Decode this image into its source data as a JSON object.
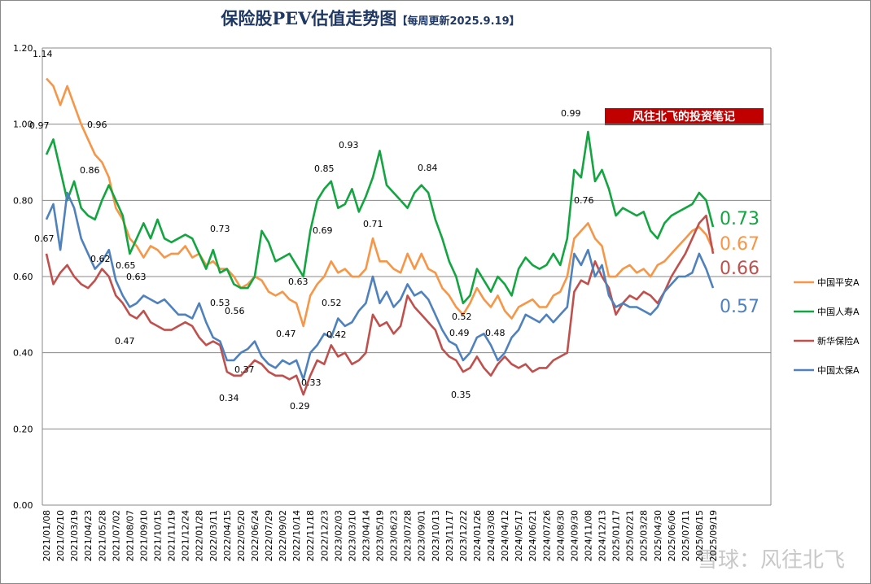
{
  "chart_data": {
    "type": "line",
    "title": "保险股PEV估值走势图",
    "subtitle": "【每周更新2025.9.19】",
    "badge": "风往北飞的投资笔记",
    "watermark": "雪球：风往北飞",
    "ylim": [
      0,
      1.2
    ],
    "yticks": [
      {
        "value": 0,
        "label": "0.00"
      },
      {
        "value": 0.2,
        "label": "0.20"
      },
      {
        "value": 0.4,
        "label": "0.40"
      },
      {
        "value": 0.6,
        "label": "0.60"
      },
      {
        "value": 0.8,
        "label": "0.80"
      },
      {
        "value": 1.0,
        "label": "1.00"
      },
      {
        "value": 1.2,
        "label": "1.20"
      }
    ],
    "grid": true,
    "legend": "right",
    "categories": [
      "2021/01/08",
      null,
      "2021/02/10",
      null,
      "2021/03/19",
      null,
      "2021/04/23",
      null,
      "2021/05/28",
      null,
      "2021/07/02",
      null,
      "2021/08/07",
      null,
      "2021/09/10",
      null,
      "2021/10/15",
      null,
      "2021/11/19",
      null,
      "2021/12/24",
      null,
      "2022/01/28",
      null,
      "2022/03/11",
      null,
      "2022/04/15",
      null,
      "2022/05/20",
      null,
      "2022/06/24",
      null,
      "2022/07/29",
      null,
      "2022/09/02",
      null,
      "2022/10/14",
      null,
      "2022/11/18",
      null,
      "2022/12/23",
      null,
      "2023/02/03",
      null,
      "2023/03/10",
      null,
      "2023/04/14",
      null,
      "2023/05/19",
      null,
      "2023/06/23",
      null,
      "2023/07/28",
      null,
      "2023/09/01",
      null,
      "2023/10/13",
      null,
      "2023/11/17",
      null,
      "2023/12/22",
      null,
      "2024/01/26",
      null,
      "2024/03/08",
      null,
      "2024/04/12",
      null,
      "2024/05/17",
      null,
      "2024/06/21",
      null,
      "2024/07/26",
      null,
      "2024/08/30",
      null,
      "2024/09/30",
      null,
      "2024/11/08",
      null,
      "2024/12/13",
      null,
      "2025/01/17",
      null,
      "2025/02/21",
      null,
      "2025/03/28",
      null,
      "2025/04/30",
      null,
      "2025/06/06",
      null,
      "2025/07/11",
      null,
      "2025/08/15",
      null,
      "2025/09/19"
    ],
    "series": [
      {
        "name": "中国平安A",
        "color": "#f79646",
        "end_label": "0.67",
        "values": [
          1.12,
          1.1,
          1.05,
          1.1,
          1.05,
          1.0,
          0.96,
          0.92,
          0.9,
          0.86,
          0.78,
          0.75,
          0.7,
          0.68,
          0.65,
          0.68,
          0.67,
          0.65,
          0.66,
          0.66,
          0.68,
          0.65,
          0.66,
          0.63,
          0.64,
          0.62,
          0.62,
          0.6,
          0.57,
          0.58,
          0.6,
          0.59,
          0.56,
          0.55,
          0.56,
          0.54,
          0.53,
          0.47,
          0.55,
          0.58,
          0.6,
          0.64,
          0.61,
          0.62,
          0.6,
          0.6,
          0.62,
          0.7,
          0.64,
          0.64,
          0.62,
          0.61,
          0.66,
          0.62,
          0.66,
          0.62,
          0.61,
          0.57,
          0.55,
          0.52,
          0.5,
          0.53,
          0.57,
          0.54,
          0.52,
          0.55,
          0.51,
          0.49,
          0.52,
          0.53,
          0.54,
          0.52,
          0.52,
          0.55,
          0.56,
          0.6,
          0.7,
          0.72,
          0.74,
          0.7,
          0.68,
          0.6,
          0.6,
          0.62,
          0.63,
          0.61,
          0.62,
          0.6,
          0.63,
          0.64,
          0.66,
          0.68,
          0.7,
          0.72,
          0.73,
          0.71,
          0.67
        ]
      },
      {
        "name": "中国人寿A",
        "color": "#12a540",
        "end_label": "0.73",
        "values": [
          0.92,
          0.96,
          0.88,
          0.8,
          0.85,
          0.78,
          0.76,
          0.75,
          0.8,
          0.84,
          0.8,
          0.76,
          0.66,
          0.7,
          0.74,
          0.7,
          0.75,
          0.7,
          0.69,
          0.7,
          0.71,
          0.7,
          0.66,
          0.62,
          0.67,
          0.61,
          0.62,
          0.58,
          0.57,
          0.57,
          0.6,
          0.72,
          0.69,
          0.64,
          0.65,
          0.66,
          0.63,
          0.6,
          0.72,
          0.8,
          0.83,
          0.85,
          0.78,
          0.79,
          0.83,
          0.77,
          0.81,
          0.86,
          0.93,
          0.84,
          0.82,
          0.8,
          0.78,
          0.82,
          0.84,
          0.82,
          0.75,
          0.7,
          0.64,
          0.6,
          0.53,
          0.55,
          0.62,
          0.59,
          0.56,
          0.6,
          0.58,
          0.55,
          0.62,
          0.65,
          0.63,
          0.62,
          0.63,
          0.66,
          0.63,
          0.7,
          0.88,
          0.86,
          0.98,
          0.85,
          0.88,
          0.83,
          0.76,
          0.78,
          0.77,
          0.76,
          0.77,
          0.72,
          0.7,
          0.74,
          0.76,
          0.77,
          0.78,
          0.79,
          0.82,
          0.8,
          0.73
        ]
      },
      {
        "name": "新华保险A",
        "color": "#c0504d",
        "end_label": "0.66",
        "values": [
          0.66,
          0.58,
          0.61,
          0.63,
          0.6,
          0.58,
          0.57,
          0.59,
          0.62,
          0.6,
          0.55,
          0.53,
          0.5,
          0.49,
          0.51,
          0.48,
          0.47,
          0.46,
          0.46,
          0.47,
          0.48,
          0.47,
          0.44,
          0.42,
          0.43,
          0.42,
          0.35,
          0.34,
          0.34,
          0.36,
          0.38,
          0.37,
          0.35,
          0.34,
          0.34,
          0.33,
          0.34,
          0.29,
          0.34,
          0.38,
          0.37,
          0.42,
          0.39,
          0.4,
          0.37,
          0.38,
          0.4,
          0.5,
          0.47,
          0.48,
          0.45,
          0.47,
          0.55,
          0.52,
          0.5,
          0.48,
          0.46,
          0.41,
          0.39,
          0.38,
          0.35,
          0.36,
          0.39,
          0.36,
          0.34,
          0.37,
          0.39,
          0.37,
          0.36,
          0.37,
          0.35,
          0.36,
          0.36,
          0.38,
          0.39,
          0.4,
          0.56,
          0.59,
          0.58,
          0.64,
          0.6,
          0.57,
          0.5,
          0.53,
          0.55,
          0.54,
          0.56,
          0.55,
          0.53,
          0.56,
          0.6,
          0.63,
          0.66,
          0.7,
          0.74,
          0.76,
          0.66
        ]
      },
      {
        "name": "中国太保A",
        "color": "#4f81bd",
        "end_label": "0.57",
        "values": [
          0.75,
          0.79,
          0.67,
          0.82,
          0.78,
          0.7,
          0.66,
          0.62,
          0.64,
          0.67,
          0.59,
          0.55,
          0.52,
          0.53,
          0.55,
          0.54,
          0.53,
          0.54,
          0.52,
          0.5,
          0.5,
          0.49,
          0.53,
          0.48,
          0.44,
          0.43,
          0.38,
          0.38,
          0.4,
          0.41,
          0.43,
          0.39,
          0.37,
          0.36,
          0.38,
          0.37,
          0.38,
          0.33,
          0.4,
          0.42,
          0.45,
          0.44,
          0.49,
          0.47,
          0.48,
          0.51,
          0.53,
          0.6,
          0.53,
          0.56,
          0.52,
          0.54,
          0.58,
          0.55,
          0.56,
          0.54,
          0.5,
          0.46,
          0.43,
          0.42,
          0.38,
          0.4,
          0.44,
          0.45,
          0.42,
          0.38,
          0.4,
          0.44,
          0.46,
          0.5,
          0.49,
          0.48,
          0.5,
          0.48,
          0.5,
          0.52,
          0.66,
          0.63,
          0.67,
          0.6,
          0.63,
          0.55,
          0.52,
          0.53,
          0.52,
          0.52,
          0.51,
          0.5,
          0.52,
          0.56,
          0.58,
          0.6,
          0.6,
          0.61,
          0.66,
          0.62,
          0.57
        ]
      }
    ],
    "annotations": [
      "1.14",
      "0.97",
      "0.96",
      "0.86",
      "0.67",
      "0.62",
      "0.65",
      "0.63",
      "0.47",
      "0.73",
      "0.53",
      "0.56",
      "0.37",
      "0.34",
      "0.47",
      "0.63",
      "0.69",
      "0.85",
      "0.93",
      "0.52",
      "0.42",
      "0.33",
      "0.29",
      "0.71",
      "0.84",
      "0.52",
      "0.49",
      "0.48",
      "0.35",
      "0.99",
      "0.76"
    ]
  }
}
